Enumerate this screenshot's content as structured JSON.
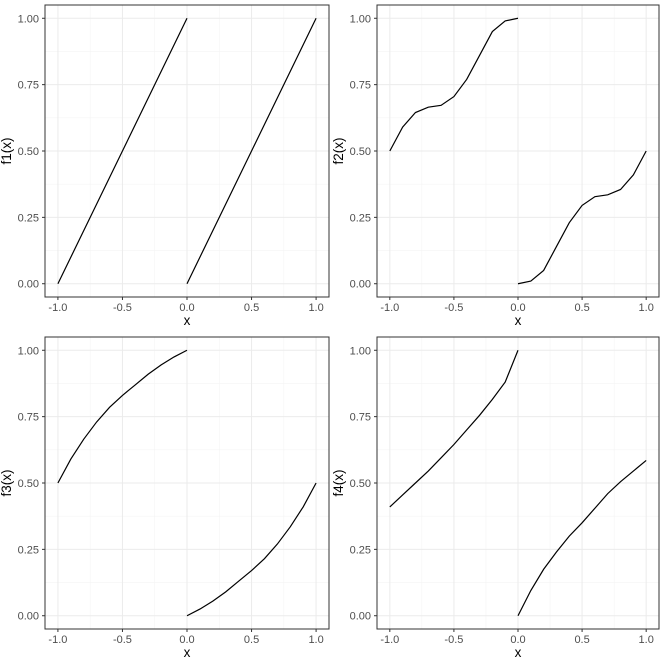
{
  "chart_data": [
    {
      "type": "line",
      "xlabel": "x",
      "ylabel": "f1(x)",
      "xlim": [
        -1.1,
        1.1
      ],
      "ylim": [
        -0.05,
        1.05
      ],
      "x_ticks": [
        -1.0,
        -0.5,
        0.0,
        0.5,
        1.0
      ],
      "x_tick_labels": [
        "-1.0",
        "-0.5",
        "0.0",
        "0.5",
        "1.0"
      ],
      "y_ticks": [
        0.0,
        0.25,
        0.5,
        0.75,
        1.0
      ],
      "y_tick_labels": [
        "0.00",
        "0.25",
        "0.50",
        "0.75",
        "1.00"
      ],
      "grid": true,
      "series": [
        {
          "x": [
            -1.0,
            -0.5,
            0.0
          ],
          "y": [
            0.0,
            0.5,
            1.0
          ]
        },
        {
          "x": [
            0.0,
            0.5,
            1.0
          ],
          "y": [
            0.0,
            0.5,
            1.0
          ]
        }
      ]
    },
    {
      "type": "line",
      "xlabel": "x",
      "ylabel": "f2(x)",
      "xlim": [
        -1.1,
        1.1
      ],
      "ylim": [
        -0.05,
        1.05
      ],
      "x_ticks": [
        -1.0,
        -0.5,
        0.0,
        0.5,
        1.0
      ],
      "x_tick_labels": [
        "-1.0",
        "-0.5",
        "0.0",
        "0.5",
        "1.0"
      ],
      "y_ticks": [
        0.0,
        0.25,
        0.5,
        0.75,
        1.0
      ],
      "y_tick_labels": [
        "0.00",
        "0.25",
        "0.50",
        "0.75",
        "1.00"
      ],
      "grid": true,
      "series": [
        {
          "x": [
            -1.0,
            -0.9,
            -0.8,
            -0.7,
            -0.6,
            -0.5,
            -0.4,
            -0.3,
            -0.2,
            -0.1,
            0.0
          ],
          "y": [
            0.5,
            0.59,
            0.645,
            0.665,
            0.672,
            0.705,
            0.77,
            0.86,
            0.95,
            0.99,
            1.0
          ]
        },
        {
          "x": [
            0.0,
            0.1,
            0.2,
            0.3,
            0.4,
            0.5,
            0.6,
            0.7,
            0.8,
            0.9,
            1.0
          ],
          "y": [
            0.0,
            0.01,
            0.05,
            0.14,
            0.23,
            0.295,
            0.328,
            0.335,
            0.355,
            0.41,
            0.5
          ]
        }
      ]
    },
    {
      "type": "line",
      "xlabel": "x",
      "ylabel": "f3(x)",
      "xlim": [
        -1.1,
        1.1
      ],
      "ylim": [
        -0.05,
        1.05
      ],
      "x_ticks": [
        -1.0,
        -0.5,
        0.0,
        0.5,
        1.0
      ],
      "x_tick_labels": [
        "-1.0",
        "-0.5",
        "0.0",
        "0.5",
        "1.0"
      ],
      "y_ticks": [
        0.0,
        0.25,
        0.5,
        0.75,
        1.0
      ],
      "y_tick_labels": [
        "0.00",
        "0.25",
        "0.50",
        "0.75",
        "1.00"
      ],
      "grid": true,
      "series": [
        {
          "x": [
            -1.0,
            -0.9,
            -0.8,
            -0.7,
            -0.6,
            -0.5,
            -0.4,
            -0.3,
            -0.2,
            -0.1,
            0.0
          ],
          "y": [
            0.5,
            0.59,
            0.665,
            0.73,
            0.785,
            0.83,
            0.87,
            0.91,
            0.945,
            0.975,
            1.0
          ]
        },
        {
          "x": [
            0.0,
            0.1,
            0.2,
            0.3,
            0.4,
            0.5,
            0.6,
            0.7,
            0.8,
            0.9,
            1.0
          ],
          "y": [
            0.0,
            0.025,
            0.055,
            0.09,
            0.13,
            0.17,
            0.215,
            0.27,
            0.335,
            0.41,
            0.5
          ]
        }
      ]
    },
    {
      "type": "line",
      "xlabel": "x",
      "ylabel": "f4(x)",
      "xlim": [
        -1.1,
        1.1
      ],
      "ylim": [
        -0.05,
        1.05
      ],
      "x_ticks": [
        -1.0,
        -0.5,
        0.0,
        0.5,
        1.0
      ],
      "x_tick_labels": [
        "-1.0",
        "-0.5",
        "0.0",
        "0.5",
        "1.0"
      ],
      "y_ticks": [
        0.0,
        0.25,
        0.5,
        0.75,
        1.0
      ],
      "y_tick_labels": [
        "0.00",
        "0.25",
        "0.50",
        "0.75",
        "1.00"
      ],
      "grid": true,
      "series": [
        {
          "x": [
            -1.0,
            -0.9,
            -0.8,
            -0.7,
            -0.6,
            -0.5,
            -0.4,
            -0.3,
            -0.2,
            -0.1,
            0.0
          ],
          "y": [
            0.41,
            0.455,
            0.5,
            0.545,
            0.595,
            0.645,
            0.7,
            0.755,
            0.815,
            0.88,
            1.0
          ]
        },
        {
          "x": [
            0.0,
            0.1,
            0.2,
            0.3,
            0.4,
            0.5,
            0.6,
            0.7,
            0.8,
            0.9,
            1.0
          ],
          "y": [
            0.0,
            0.095,
            0.175,
            0.24,
            0.3,
            0.35,
            0.405,
            0.46,
            0.505,
            0.545,
            0.585
          ]
        }
      ]
    }
  ]
}
